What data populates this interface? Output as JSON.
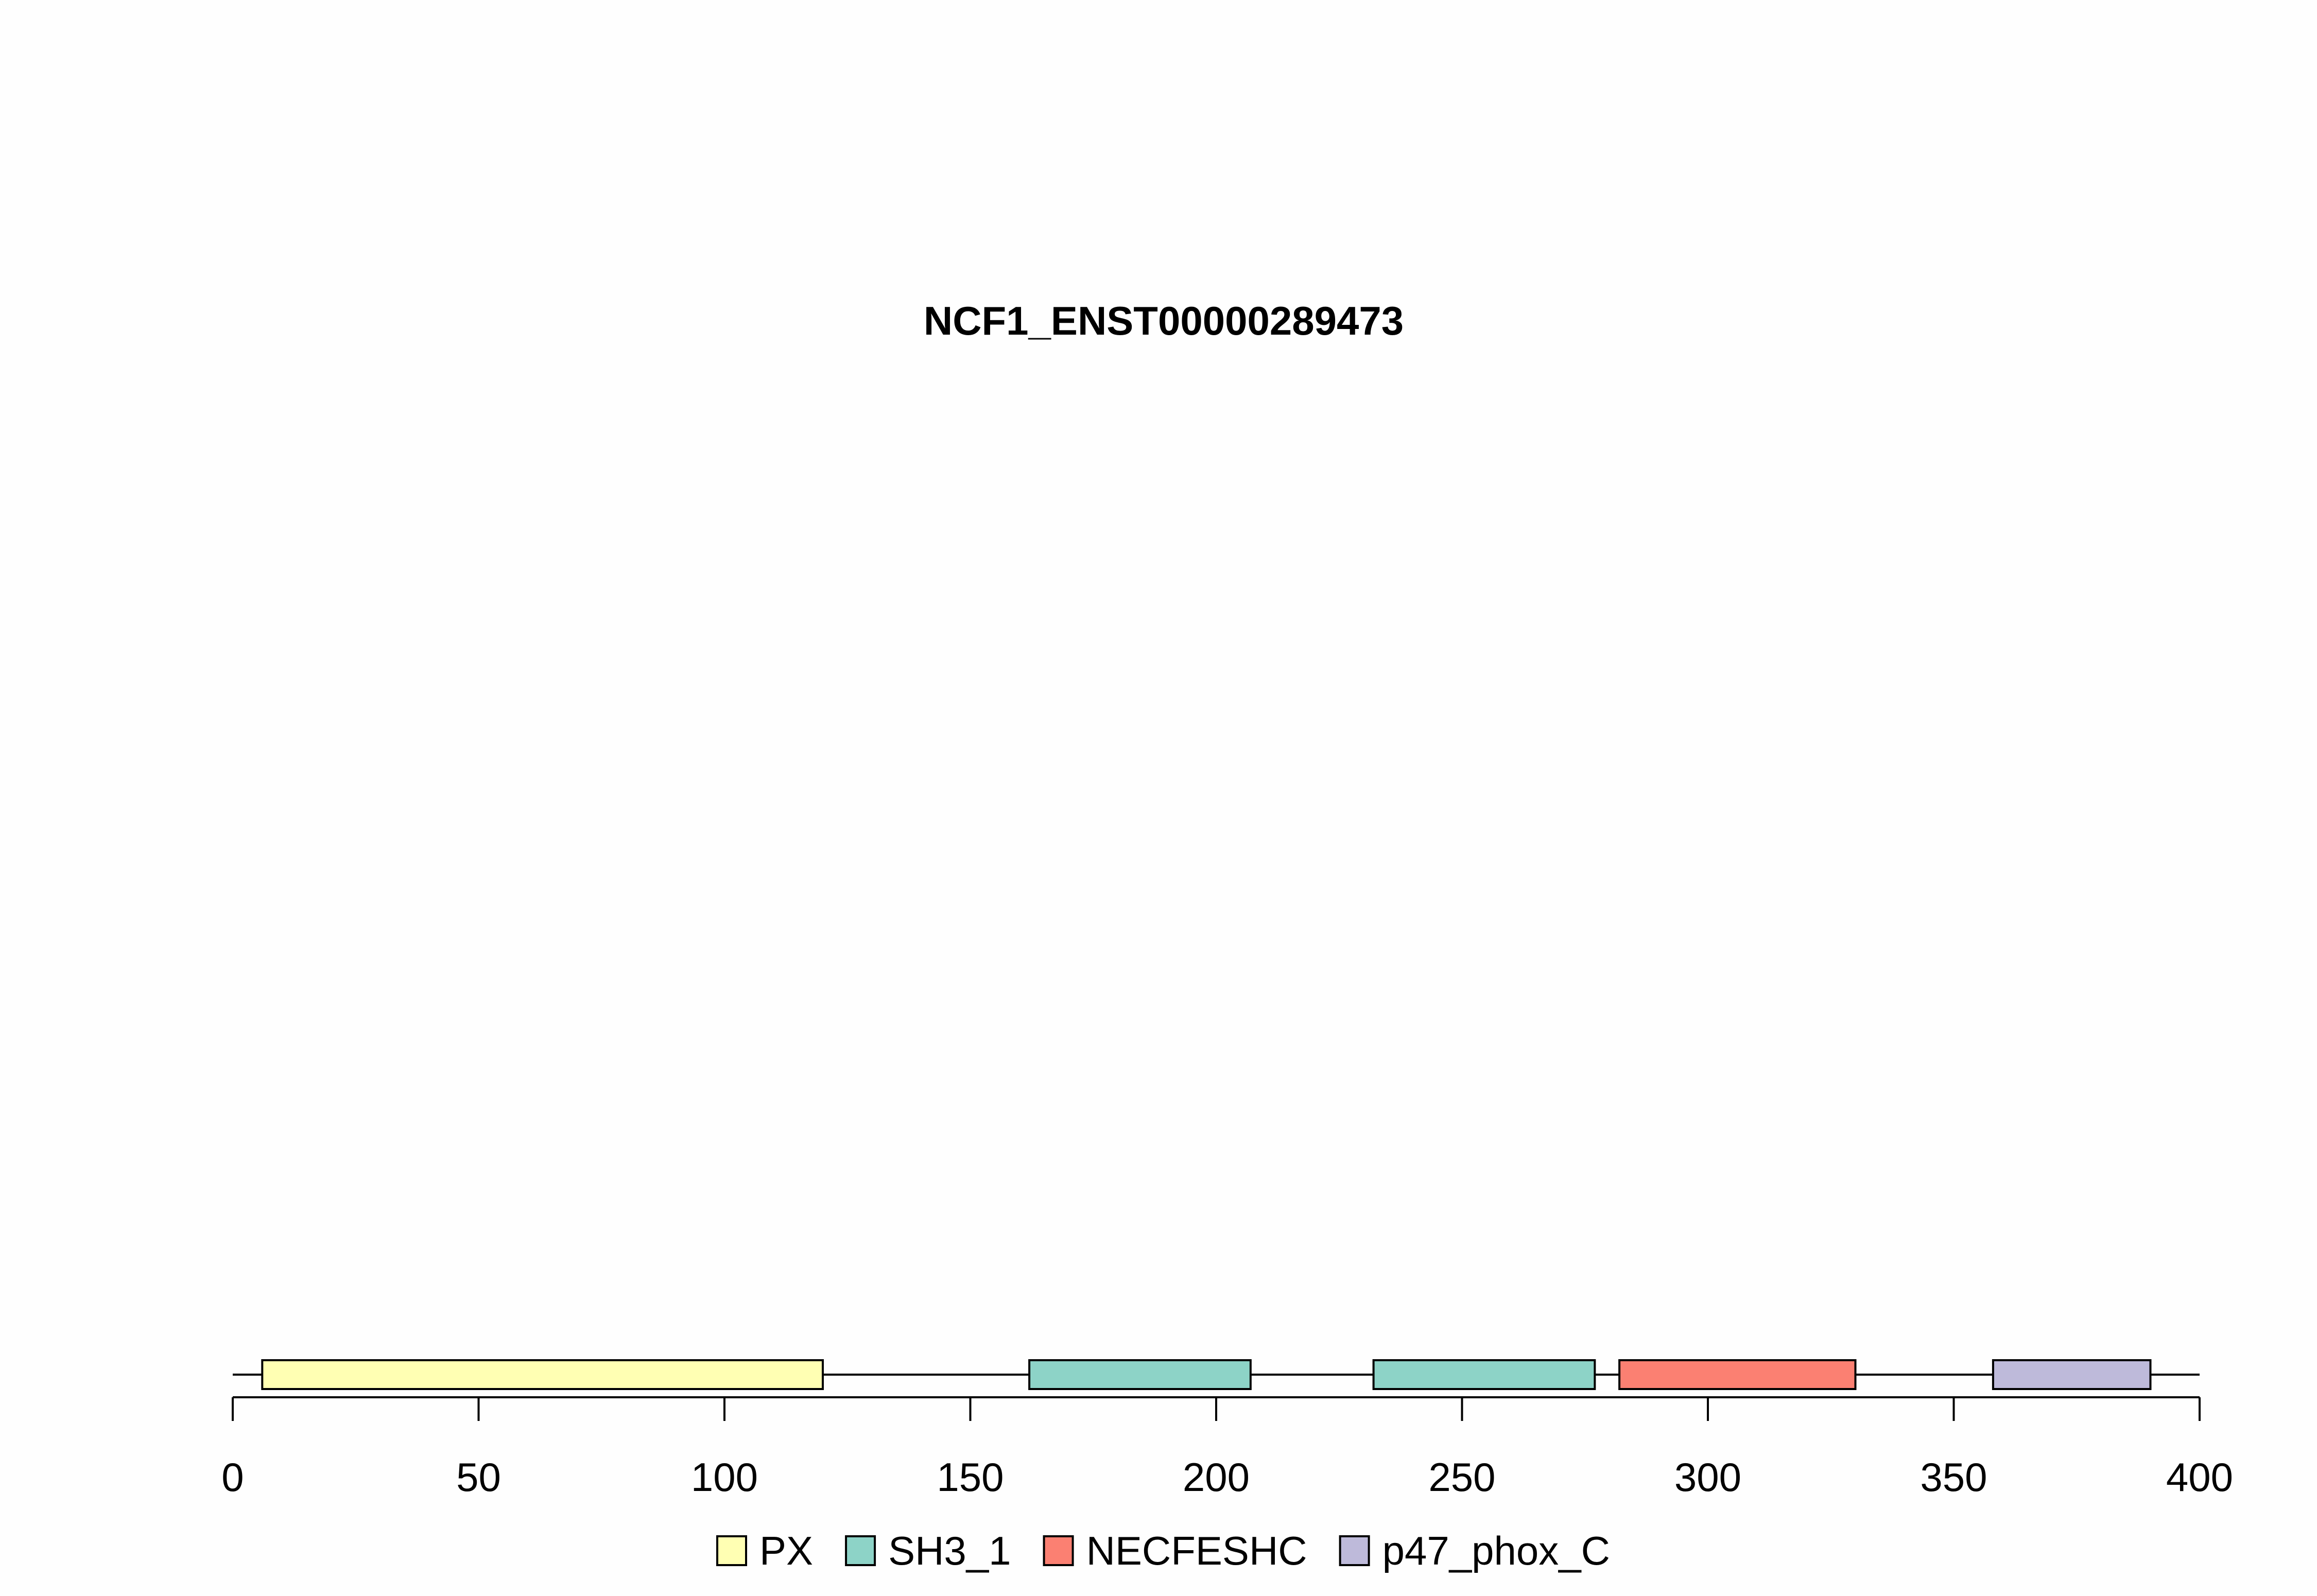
{
  "chart_data": {
    "type": "bar",
    "title": "NCF1_ENST00000289473",
    "xlabel": "",
    "ylabel": "",
    "xlim": [
      0,
      400
    ],
    "x_ticks": [
      0,
      50,
      100,
      150,
      200,
      250,
      300,
      350,
      400
    ],
    "protein_length": 400,
    "grid": false,
    "legend_position": "bottom",
    "domains": [
      {
        "name": "PX",
        "start": 6,
        "end": 120,
        "color": "#FFFFB3"
      },
      {
        "name": "SH3_1",
        "start": 162,
        "end": 207,
        "color": "#8DD3C7"
      },
      {
        "name": "SH3_1",
        "start": 232,
        "end": 277,
        "color": "#8DD3C7"
      },
      {
        "name": "NECFESHC",
        "start": 282,
        "end": 330,
        "color": "#FB8072"
      },
      {
        "name": "p47_phox_C",
        "start": 358,
        "end": 390,
        "color": "#BEBADA"
      }
    ],
    "legend": [
      {
        "label": "PX",
        "color": "#FFFFB3"
      },
      {
        "label": "SH3_1",
        "color": "#8DD3C7"
      },
      {
        "label": "NECFESHC",
        "color": "#FB8072"
      },
      {
        "label": "p47_phox_C",
        "color": "#BEBADA"
      }
    ]
  }
}
